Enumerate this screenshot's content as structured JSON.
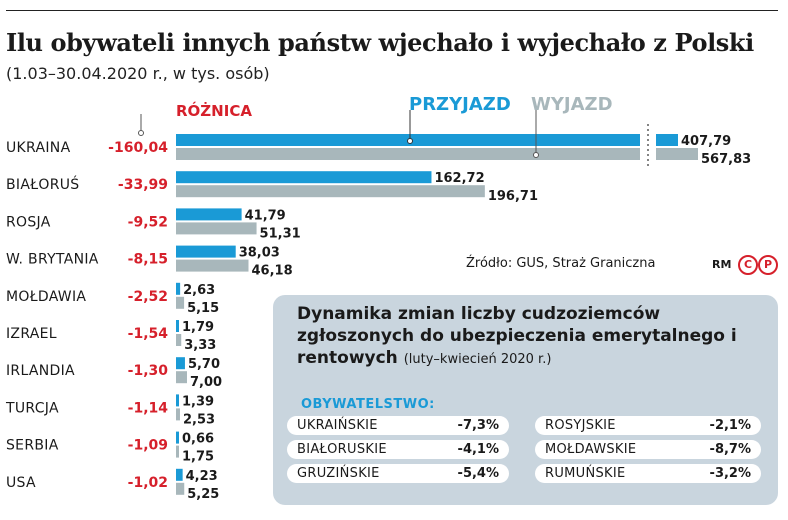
{
  "title": "Ilu obywateli innych państw wjechało i wyjechało z Polski",
  "subtitle": "(1.03–30.04.2020 r., w tys. osób)",
  "source": "Źródło: GUS, Straż Graniczna",
  "credit": "RM",
  "badges": [
    "C",
    "P"
  ],
  "colors": {
    "in": "#1a9ad6",
    "out": "#a8b7bb",
    "diff": "#d6202b"
  },
  "chart_data": {
    "type": "bar",
    "legend": {
      "diff": "RÓŻNICA",
      "in": "PRZYJAZD",
      "out": "WYJAZD"
    },
    "categories": [
      "UKRAINA",
      "BIAŁORUŚ",
      "ROSJA",
      "W. BRYTANIA",
      "MOŁDAWIA",
      "IZRAEL",
      "IRLANDIA",
      "TURCJA",
      "SERBIA",
      "USA"
    ],
    "series": [
      {
        "name": "PRZYJAZD",
        "values": [
          407.79,
          162.72,
          41.79,
          38.03,
          2.63,
          1.79,
          5.7,
          1.39,
          0.66,
          4.23
        ],
        "labels": [
          "407,79",
          "162,72",
          "41,79",
          "38,03",
          "2,63",
          "1,79",
          "5,70",
          "1,39",
          "0,66",
          "4,23"
        ]
      },
      {
        "name": "WYJAZD",
        "values": [
          567.83,
          196.71,
          51.31,
          46.18,
          5.15,
          3.33,
          7.0,
          2.53,
          1.75,
          5.25
        ],
        "labels": [
          "567,83",
          "196,71",
          "51,31",
          "46,18",
          "5,15",
          "3,33",
          "7,00",
          "2,53",
          "1,75",
          "5,25"
        ]
      }
    ],
    "differences": [
      "-160,04",
      "-33,99",
      "-9,52",
      "-8,15",
      "-2,52",
      "-1,54",
      "-1,30",
      "-1,14",
      "-1,09",
      "-1,02"
    ],
    "axis_break": {
      "value": 300
    }
  },
  "panel": {
    "title": "Dynamika zmian liczby cudzoziemców zgłoszonych do ubezpieczenia emerytalnego i rentowych",
    "subtitle": "(luty–kwiecień 2020 r.)",
    "header": "OBYWATELSTWO:",
    "items": [
      {
        "name": "UKRAIŃSKIE",
        "value": "-7,3%"
      },
      {
        "name": "BIAŁORUSKIE",
        "value": "-4,1%"
      },
      {
        "name": "GRUZIŃSKIE",
        "value": "-5,4%"
      },
      {
        "name": "ROSYJSKIE",
        "value": "-2,1%"
      },
      {
        "name": "MOŁDAWSKIE",
        "value": "-8,7%"
      },
      {
        "name": "RUMUŃSKIE",
        "value": "-3,2%"
      }
    ]
  }
}
